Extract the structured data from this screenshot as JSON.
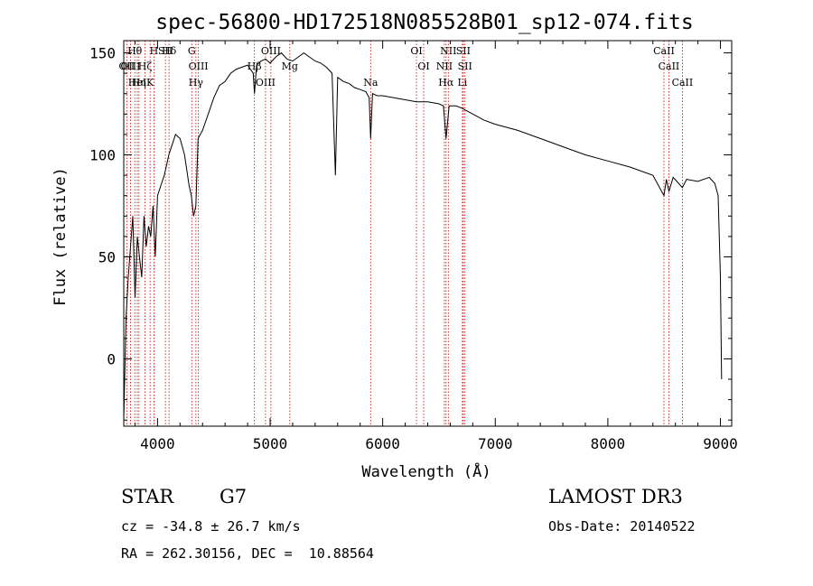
{
  "chart_data": {
    "type": "line",
    "title": "spec-56800-HD172518N085528B01_sp12-074.fits",
    "xlabel": "Wavelength (Å)",
    "ylabel": "Flux (relative)",
    "xlim": [
      3700,
      9100
    ],
    "ylim": [
      -33,
      156
    ],
    "xticks": [
      4000,
      5000,
      6000,
      7000,
      8000,
      9000
    ],
    "xtick_labels": [
      "4000",
      "5000",
      "6000",
      "7000",
      "8000",
      "9000"
    ],
    "yticks": [
      0,
      50,
      100,
      150
    ],
    "ytick_labels": [
      "0",
      "50",
      "100",
      "150"
    ],
    "series": [
      {
        "name": "flux",
        "x": [
          3700,
          3720,
          3740,
          3760,
          3780,
          3800,
          3820,
          3840,
          3860,
          3880,
          3900,
          3920,
          3940,
          3960,
          3980,
          4000,
          4030,
          4060,
          4080,
          4100,
          4130,
          4160,
          4200,
          4240,
          4280,
          4300,
          4320,
          4340,
          4360,
          4400,
          4450,
          4500,
          4550,
          4600,
          4650,
          4700,
          4750,
          4800,
          4850,
          4861,
          4880,
          4920,
          4960,
          5000,
          5050,
          5100,
          5150,
          5200,
          5250,
          5300,
          5350,
          5400,
          5450,
          5500,
          5550,
          5580,
          5600,
          5650,
          5700,
          5750,
          5800,
          5850,
          5880,
          5893,
          5910,
          5950,
          6000,
          6100,
          6200,
          6300,
          6400,
          6500,
          6540,
          6563,
          6590,
          6650,
          6700,
          6800,
          6900,
          7000,
          7200,
          7400,
          7600,
          7800,
          8000,
          8200,
          8400,
          8498,
          8520,
          8542,
          8580,
          8662,
          8700,
          8800,
          8900,
          8950,
          8980,
          9000,
          9010
        ],
        "y": [
          -30,
          20,
          40,
          55,
          70,
          30,
          60,
          50,
          40,
          70,
          55,
          65,
          60,
          75,
          50,
          80,
          85,
          90,
          95,
          100,
          105,
          110,
          108,
          100,
          85,
          80,
          70,
          75,
          108,
          112,
          120,
          128,
          134,
          136,
          140,
          142,
          143,
          144,
          140,
          130,
          144,
          146,
          147,
          145,
          148,
          150,
          147,
          146,
          148,
          150,
          148,
          146,
          145,
          143,
          140,
          90,
          138,
          136,
          135,
          133,
          132,
          131,
          128,
          108,
          130,
          129,
          129,
          128,
          127,
          126,
          126,
          125,
          124,
          108,
          124,
          124,
          123,
          120,
          117,
          115,
          112,
          108,
          104,
          100,
          97,
          94,
          90,
          80,
          88,
          82,
          89,
          84,
          88,
          87,
          89,
          86,
          80,
          40,
          -10
        ]
      }
    ],
    "annotations": {
      "spectral_lines": [
        {
          "label": "Hθ",
          "wavelength": 3798
        },
        {
          "label": "Hζ",
          "wavelength": 3889
        },
        {
          "label": "K",
          "wavelength": 3934
        },
        {
          "label": "Hδ",
          "wavelength": 4102
        },
        {
          "label": "OII",
          "wavelength": 3727
        },
        {
          "label": "HeI",
          "wavelength": 3820
        },
        {
          "label": "SII",
          "wavelength": 4070
        },
        {
          "label": "OIII",
          "wavelength": 3760
        },
        {
          "label": "Hη",
          "wavelength": 3835
        },
        {
          "label": "H",
          "wavelength": 3968
        },
        {
          "label": "OIII",
          "wavelength": 4363
        },
        {
          "label": "Hγ",
          "wavelength": 4341
        },
        {
          "label": "G",
          "wavelength": 4304
        },
        {
          "label": "Hβ",
          "wavelength": 4861
        },
        {
          "label": "OIII",
          "wavelength": 4959
        },
        {
          "label": "OIII",
          "wavelength": 5007
        },
        {
          "label": "Mg",
          "wavelength": 5175
        },
        {
          "label": "Na",
          "wavelength": 5893
        },
        {
          "label": "OI",
          "wavelength": 6300
        },
        {
          "label": "OI",
          "wavelength": 6364
        },
        {
          "label": "Hα",
          "wavelength": 6563
        },
        {
          "label": "SII",
          "wavelength": 6716
        },
        {
          "label": "NII",
          "wavelength": 6548
        },
        {
          "label": "Li",
          "wavelength": 6708
        },
        {
          "label": "NII",
          "wavelength": 6583
        },
        {
          "label": "SII",
          "wavelength": 6731
        },
        {
          "label": "CaII",
          "wavelength": 8498
        },
        {
          "label": "CaII",
          "wavelength": 8542
        },
        {
          "label": "CaII",
          "wavelength": 8662
        }
      ]
    }
  },
  "info": {
    "object_class": "STAR",
    "subclass": "G7",
    "survey": "LAMOST DR3",
    "cz": "cz = -34.8 ± 26.7 km/s",
    "obs_date": "Obs-Date: 20140522",
    "coords": "RA = 262.30156, DEC =  10.88564"
  },
  "colors": {
    "line": "#000000",
    "marker_line": "#cc0000",
    "axes": "#000000"
  }
}
